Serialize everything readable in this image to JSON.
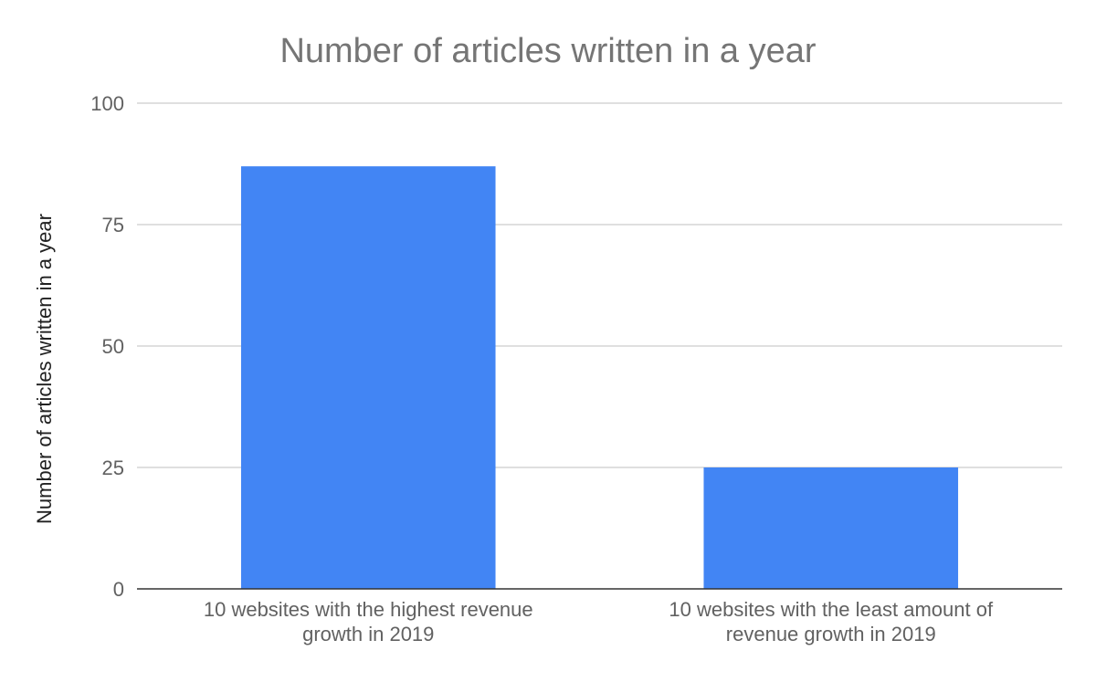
{
  "chart_data": {
    "type": "bar",
    "title": "Number of articles written in a year",
    "xlabel": "",
    "ylabel": "Number of articles written in a year",
    "categories": [
      [
        "10 websites with the highest revenue",
        "growth in 2019"
      ],
      [
        "10 websites with the least amount of",
        "revenue growth in 2019"
      ]
    ],
    "values": [
      87,
      25
    ],
    "ylim": [
      0,
      100
    ],
    "yticks": [
      "0",
      "25",
      "50",
      "75",
      "100"
    ],
    "grid": true,
    "legend": "none",
    "bar_color": "#4285f4"
  }
}
